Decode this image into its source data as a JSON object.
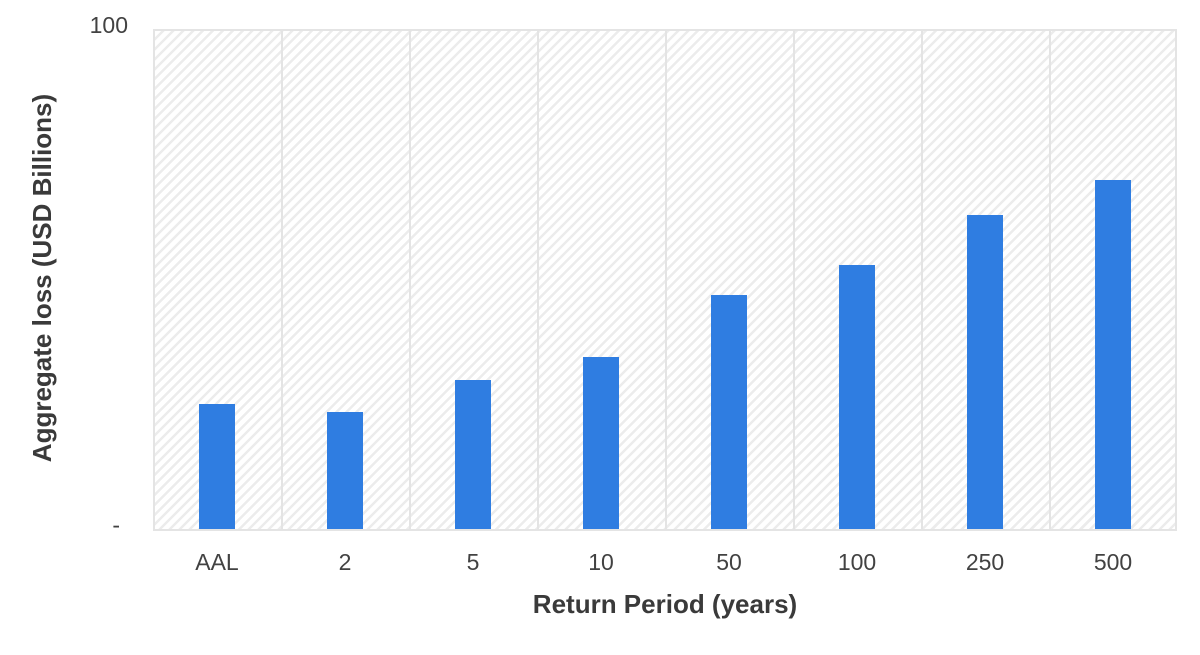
{
  "chart_data": {
    "type": "bar",
    "title": "",
    "categories": [
      "AAL",
      "2",
      "5",
      "10",
      "50",
      "100",
      "250",
      "500"
    ],
    "values": [
      25,
      23.5,
      30,
      34.5,
      47,
      53,
      63,
      70
    ],
    "xlabel": "Return Period (years)",
    "ylabel": "Aggregate loss (USD Billions)",
    "ylim": [
      0,
      100
    ],
    "y_axis_tick_labels": {
      "top": "100",
      "bottom": "-"
    },
    "legend": "none",
    "grid": {
      "vertical_column_separators": true,
      "horizontal_gridlines": false
    },
    "plot_background": "diagonal-hatch",
    "styles": {
      "bar_color": "#2F7DE1",
      "plot_border_color": "#E4E4E4",
      "gridline_color": "#E4E4E4",
      "hatch_stripe_color": "#ECECEC",
      "tick_label_color": "#424242",
      "axis_title_color": "#3A3A3A"
    }
  }
}
